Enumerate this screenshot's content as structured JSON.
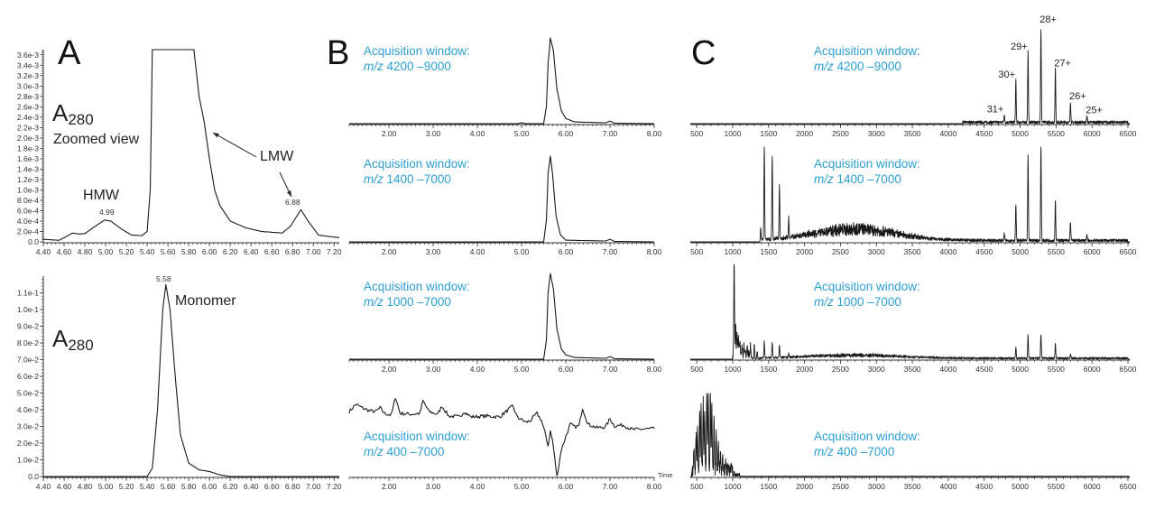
{
  "panels": {
    "a": "A",
    "b": "B",
    "c": "C"
  },
  "annotations": {
    "a280_label": "A",
    "a280_sub": "280",
    "zoomed_view": "Zoomed view",
    "hmw": "HMW",
    "lmw": "LMW",
    "peak_499": "4.99",
    "peak_688": "6.88",
    "peak_558": "5.58",
    "monomer": "Monomer",
    "time_label": "Time"
  },
  "acquisition": [
    {
      "title": "Acquisition window:",
      "mz": "m/z",
      "range": "4200 –9000"
    },
    {
      "title": "Acquisition window:",
      "mz": "m/z",
      "range": "1400 –7000"
    },
    {
      "title": "Acquisition window:",
      "mz": "m/z",
      "range": "1000 –7000"
    },
    {
      "title": "Acquisition window:",
      "mz": "m/z",
      "range": "400 –7000"
    }
  ],
  "charge_states": [
    {
      "label": "31+",
      "mz": 4780
    },
    {
      "label": "30+",
      "mz": 4940
    },
    {
      "label": "29+",
      "mz": 5110
    },
    {
      "label": "28+",
      "mz": 5290
    },
    {
      "label": "27+",
      "mz": 5490
    },
    {
      "label": "26+",
      "mz": 5700
    },
    {
      "label": "25+",
      "mz": 5930
    }
  ],
  "colors": {
    "trace": "#1a1a1a",
    "acquisition_text": "#2c9fd2",
    "axis": "#333333"
  },
  "chart_data": [
    {
      "id": "A-zoomed",
      "type": "line",
      "xlim": [
        4.4,
        7.25
      ],
      "ylim": [
        0,
        0.0037
      ],
      "xticks": [
        "4.40",
        "4.60",
        "4.80",
        "5.00",
        "5.20",
        "5.40",
        "5.60",
        "5.80",
        "6.00",
        "6.20",
        "6.40",
        "6.60",
        "6.80",
        "7.00",
        "7.20"
      ],
      "yticks": [
        "0.0",
        "2.0e-4",
        "4.0e-4",
        "6.0e-4",
        "8.0e-4",
        "1.0e-3",
        "1.2e-3",
        "1.4e-3",
        "1.6e-3",
        "1.8e-3",
        "2.0e-3",
        "2.2e-3",
        "2.4e-3",
        "2.6e-3",
        "2.8e-3",
        "3.0e-3",
        "3.2e-3",
        "3.4e-3",
        "3.6e-3"
      ],
      "points": [
        [
          4.4,
          5e-05
        ],
        [
          4.55,
          3e-05
        ],
        [
          4.62,
          0.0001
        ],
        [
          4.68,
          0.00017
        ],
        [
          4.75,
          0.00015
        ],
        [
          4.8,
          0.00016
        ],
        [
          4.9,
          0.0003
        ],
        [
          4.99,
          0.00042
        ],
        [
          5.05,
          0.0004
        ],
        [
          5.15,
          0.00025
        ],
        [
          5.25,
          0.00013
        ],
        [
          5.35,
          0.00012
        ],
        [
          5.4,
          0.0002
        ],
        [
          5.43,
          0.001
        ],
        [
          5.45,
          0.0037
        ],
        [
          5.85,
          0.0037
        ],
        [
          5.9,
          0.0028
        ],
        [
          5.95,
          0.0023
        ],
        [
          6.0,
          0.0016
        ],
        [
          6.05,
          0.001
        ],
        [
          6.1,
          0.0007
        ],
        [
          6.2,
          0.0004
        ],
        [
          6.35,
          0.00027
        ],
        [
          6.5,
          0.0002
        ],
        [
          6.7,
          0.00017
        ],
        [
          6.78,
          0.0003
        ],
        [
          6.88,
          0.00062
        ],
        [
          6.95,
          0.0004
        ],
        [
          7.05,
          0.00013
        ],
        [
          7.25,
          8e-05
        ]
      ]
    },
    {
      "id": "A-full",
      "type": "line",
      "xlim": [
        4.4,
        7.25
      ],
      "ylim": [
        0,
        0.12
      ],
      "xticks": [
        "4.40",
        "4.60",
        "4.80",
        "5.00",
        "5.20",
        "5.40",
        "5.60",
        "5.80",
        "6.00",
        "6.20",
        "6.40",
        "6.60",
        "6.80",
        "7.00",
        "7.20"
      ],
      "yticks": [
        "0.0",
        "1.0e-2",
        "2.0e-2",
        "3.0e-2",
        "4.0e-2",
        "5.0e-2",
        "6.0e-2",
        "7.0e-2",
        "8.0e-2",
        "9.0e-2",
        "1.0e-1",
        "1.1e-1"
      ],
      "points": [
        [
          4.4,
          0
        ],
        [
          5.4,
          0
        ],
        [
          5.45,
          0.005
        ],
        [
          5.5,
          0.04
        ],
        [
          5.55,
          0.1
        ],
        [
          5.58,
          0.115
        ],
        [
          5.62,
          0.1
        ],
        [
          5.67,
          0.06
        ],
        [
          5.72,
          0.025
        ],
        [
          5.8,
          0.008
        ],
        [
          5.9,
          0.004
        ],
        [
          6.0,
          0.003
        ],
        [
          6.1,
          0.001
        ],
        [
          6.2,
          0
        ],
        [
          7.25,
          0
        ]
      ]
    },
    {
      "id": "B-4200-9000",
      "type": "line",
      "xlim": [
        1.1,
        8.0
      ],
      "ylim": [
        0,
        100
      ],
      "xticks": [
        "2.00",
        "3.00",
        "4.00",
        "5.00",
        "6.00",
        "7.00",
        "8.00"
      ],
      "points": [
        [
          1.1,
          0
        ],
        [
          4.9,
          0
        ],
        [
          5.0,
          1
        ],
        [
          5.1,
          0
        ],
        [
          5.5,
          0
        ],
        [
          5.56,
          20
        ],
        [
          5.6,
          70
        ],
        [
          5.65,
          100
        ],
        [
          5.72,
          85
        ],
        [
          5.8,
          40
        ],
        [
          5.9,
          15
        ],
        [
          6.0,
          6
        ],
        [
          6.2,
          2
        ],
        [
          6.9,
          1
        ],
        [
          7.0,
          3
        ],
        [
          7.1,
          0.5
        ],
        [
          8.0,
          0
        ]
      ]
    },
    {
      "id": "B-1400-7000",
      "type": "line",
      "xlim": [
        1.1,
        8.0
      ],
      "ylim": [
        0,
        100
      ],
      "xticks": [
        "2.00",
        "3.00",
        "4.00",
        "5.00",
        "6.00",
        "7.00",
        "8.00"
      ],
      "points": [
        [
          1.1,
          0
        ],
        [
          5.5,
          0
        ],
        [
          5.56,
          25
        ],
        [
          5.6,
          80
        ],
        [
          5.65,
          100
        ],
        [
          5.7,
          80
        ],
        [
          5.78,
          30
        ],
        [
          5.88,
          8
        ],
        [
          6.0,
          2
        ],
        [
          6.9,
          1
        ],
        [
          7.0,
          3
        ],
        [
          7.1,
          0.5
        ],
        [
          8.0,
          0
        ]
      ]
    },
    {
      "id": "B-1000-7000",
      "type": "line",
      "xlim": [
        1.1,
        8.0
      ],
      "ylim": [
        0,
        100
      ],
      "xticks": [
        "2.00",
        "3.00",
        "4.00",
        "5.00",
        "6.00",
        "7.00",
        "8.00"
      ],
      "points": [
        [
          1.1,
          0
        ],
        [
          5.5,
          0
        ],
        [
          5.56,
          22
        ],
        [
          5.6,
          78
        ],
        [
          5.65,
          100
        ],
        [
          5.72,
          82
        ],
        [
          5.8,
          35
        ],
        [
          5.9,
          12
        ],
        [
          6.0,
          5
        ],
        [
          6.2,
          2
        ],
        [
          6.9,
          1
        ],
        [
          7.0,
          3
        ],
        [
          7.1,
          0.5
        ],
        [
          8.0,
          0
        ]
      ]
    },
    {
      "id": "B-400-7000",
      "type": "line",
      "xlim": [
        1.1,
        8.0
      ],
      "ylim": [
        0,
        100
      ],
      "xlabel": "Time",
      "xticks": [
        "2.00",
        "3.00",
        "4.00",
        "5.00",
        "6.00",
        "7.00",
        "8.00"
      ],
      "points": [
        [
          1.1,
          72
        ],
        [
          1.25,
          80
        ],
        [
          1.4,
          76
        ],
        [
          1.55,
          73
        ],
        [
          1.7,
          72
        ],
        [
          1.8,
          76
        ],
        [
          1.9,
          70
        ],
        [
          2.05,
          68
        ],
        [
          2.15,
          88
        ],
        [
          2.25,
          70
        ],
        [
          2.5,
          69
        ],
        [
          2.7,
          70
        ],
        [
          2.77,
          84
        ],
        [
          2.9,
          72
        ],
        [
          3.1,
          69
        ],
        [
          3.2,
          78
        ],
        [
          3.35,
          67
        ],
        [
          3.6,
          66
        ],
        [
          3.7,
          72
        ],
        [
          3.85,
          66
        ],
        [
          4.2,
          67
        ],
        [
          4.5,
          66
        ],
        [
          4.7,
          74
        ],
        [
          4.8,
          78
        ],
        [
          4.9,
          66
        ],
        [
          5.1,
          60
        ],
        [
          5.2,
          62
        ],
        [
          5.35,
          70
        ],
        [
          5.45,
          62
        ],
        [
          5.55,
          45
        ],
        [
          5.6,
          34
        ],
        [
          5.65,
          50
        ],
        [
          5.7,
          40
        ],
        [
          5.8,
          0
        ],
        [
          5.9,
          30
        ],
        [
          6.0,
          44
        ],
        [
          6.1,
          58
        ],
        [
          6.2,
          55
        ],
        [
          6.3,
          56
        ],
        [
          6.38,
          76
        ],
        [
          6.5,
          58
        ],
        [
          6.7,
          54
        ],
        [
          6.9,
          55
        ],
        [
          7.0,
          64
        ],
        [
          7.1,
          56
        ],
        [
          7.3,
          57
        ],
        [
          7.5,
          52
        ],
        [
          8.0,
          53
        ]
      ]
    },
    {
      "id": "C-4200-9000",
      "type": "bar",
      "xlim": [
        410,
        6525
      ],
      "ylim": [
        0,
        100
      ],
      "xticks": [
        "500",
        "1000",
        "1500",
        "2000",
        "2500",
        "3000",
        "3500",
        "4000",
        "4500",
        "5000",
        "5500",
        "6000",
        "6500"
      ],
      "noise": [
        [
          4200,
          6500,
          3
        ]
      ],
      "peaks": [
        [
          4780,
          8
        ],
        [
          4940,
          45
        ],
        [
          5110,
          75
        ],
        [
          5290,
          100
        ],
        [
          5490,
          57
        ],
        [
          5700,
          22
        ],
        [
          5930,
          7
        ]
      ]
    },
    {
      "id": "C-1400-7000",
      "type": "bar",
      "xlim": [
        410,
        6525
      ],
      "ylim": [
        0,
        100
      ],
      "xticks": [
        "500",
        "1000",
        "1500",
        "2000",
        "2500",
        "3000",
        "3500",
        "4000",
        "4500",
        "5000",
        "5500",
        "6000",
        "6500"
      ],
      "noise": [
        [
          1400,
          6500,
          3
        ]
      ],
      "hump": [
        2700,
        15,
        800
      ],
      "peaks": [
        [
          1390,
          15
        ],
        [
          1440,
          100
        ],
        [
          1550,
          88
        ],
        [
          1650,
          55
        ],
        [
          1780,
          20
        ],
        [
          4780,
          8
        ],
        [
          4940,
          38
        ],
        [
          5110,
          90
        ],
        [
          5290,
          100
        ],
        [
          5490,
          42
        ],
        [
          5700,
          20
        ],
        [
          5930,
          6
        ]
      ]
    },
    {
      "id": "C-1000-7000",
      "type": "bar",
      "xlim": [
        410,
        6525
      ],
      "ylim": [
        0,
        100
      ],
      "xticks": [
        "500",
        "1000",
        "1500",
        "2000",
        "2500",
        "3000",
        "3500",
        "4000",
        "4500",
        "5000",
        "5500",
        "6000",
        "6500"
      ],
      "noise": [
        [
          1000,
          1250,
          10
        ],
        [
          1250,
          6500,
          2
        ]
      ],
      "hump": [
        2700,
        4,
        900
      ],
      "peaks": [
        [
          1020,
          100
        ],
        [
          1040,
          35
        ],
        [
          1060,
          22
        ],
        [
          1080,
          18
        ],
        [
          1100,
          15
        ],
        [
          1130,
          12
        ],
        [
          1160,
          10
        ],
        [
          1200,
          8
        ],
        [
          1250,
          9
        ],
        [
          1300,
          14
        ],
        [
          1340,
          7
        ],
        [
          1440,
          17
        ],
        [
          1550,
          16
        ],
        [
          1650,
          13
        ],
        [
          1780,
          5
        ],
        [
          4940,
          12
        ],
        [
          5110,
          24
        ],
        [
          5290,
          25
        ],
        [
          5490,
          15
        ],
        [
          5700,
          5
        ]
      ]
    },
    {
      "id": "C-400-7000",
      "type": "bar",
      "xlim": [
        410,
        6525
      ],
      "ylim": [
        0,
        100
      ],
      "xticks": [
        "500",
        "1000",
        "1500",
        "2000",
        "2500",
        "3000",
        "3500",
        "4000",
        "4500",
        "5000",
        "5500",
        "6000",
        "6500"
      ],
      "noise": [
        [
          430,
          1000,
          15
        ],
        [
          1000,
          1100,
          4
        ],
        [
          1100,
          6500,
          0.5
        ]
      ],
      "peaks": [
        [
          460,
          30
        ],
        [
          490,
          45
        ],
        [
          510,
          55
        ],
        [
          540,
          70
        ],
        [
          560,
          78
        ],
        [
          590,
          88
        ],
        [
          610,
          72
        ],
        [
          640,
          100
        ],
        [
          660,
          92
        ],
        [
          690,
          100
        ],
        [
          710,
          80
        ],
        [
          740,
          60
        ],
        [
          770,
          45
        ],
        [
          800,
          35
        ],
        [
          830,
          25
        ],
        [
          860,
          18
        ],
        [
          900,
          12
        ],
        [
          940,
          8
        ],
        [
          980,
          5
        ],
        [
          1020,
          3
        ]
      ]
    }
  ]
}
